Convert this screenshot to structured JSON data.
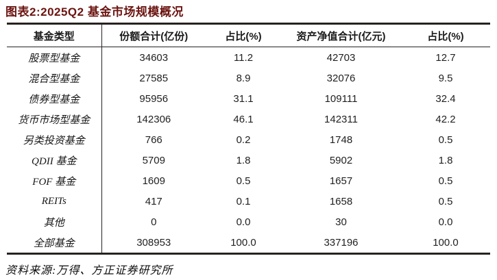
{
  "figure": {
    "title": "图表2:2025Q2 基金市场规模概况",
    "source": "资料来源:万得、方正证券研究所"
  },
  "table": {
    "headers": [
      "基金类型",
      "份额合计(亿份)",
      "占比(%)",
      "资产净值合计(亿元)",
      "占比(%)"
    ],
    "rows": [
      {
        "type": "股票型基金",
        "shares": "34603",
        "shares_pct": "11.2",
        "nav": "42703",
        "nav_pct": "12.7"
      },
      {
        "type": "混合型基金",
        "shares": "27585",
        "shares_pct": "8.9",
        "nav": "32076",
        "nav_pct": "9.5"
      },
      {
        "type": "债券型基金",
        "shares": "95956",
        "shares_pct": "31.1",
        "nav": "109111",
        "nav_pct": "32.4"
      },
      {
        "type": "货币市场型基金",
        "shares": "142306",
        "shares_pct": "46.1",
        "nav": "142311",
        "nav_pct": "42.2"
      },
      {
        "type": "另类投资基金",
        "shares": "766",
        "shares_pct": "0.2",
        "nav": "1748",
        "nav_pct": "0.5"
      },
      {
        "type": "QDII 基金",
        "shares": "5709",
        "shares_pct": "1.8",
        "nav": "5902",
        "nav_pct": "1.8"
      },
      {
        "type": "FOF 基金",
        "shares": "1609",
        "shares_pct": "0.5",
        "nav": "1657",
        "nav_pct": "0.5"
      },
      {
        "type": "REITs",
        "shares": "417",
        "shares_pct": "0.1",
        "nav": "1658",
        "nav_pct": "0.5"
      },
      {
        "type": "其他",
        "shares": "0",
        "shares_pct": "0.0",
        "nav": "30",
        "nav_pct": "0.0"
      },
      {
        "type": "全部基金",
        "shares": "308953",
        "shares_pct": "100.0",
        "nav": "337196",
        "nav_pct": "100.0"
      }
    ]
  },
  "colors": {
    "title_text": "#6b1410",
    "body_text": "#1f1f1f",
    "table_border": "#262220",
    "background": "#ffffff"
  }
}
